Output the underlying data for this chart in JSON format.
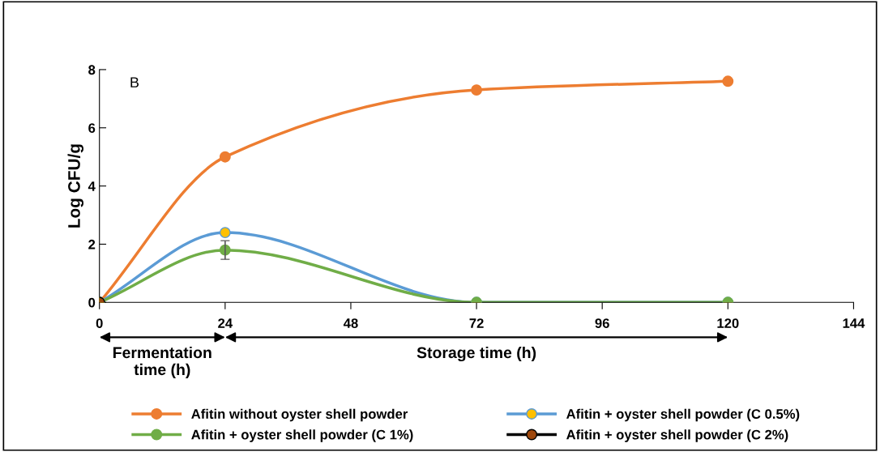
{
  "chart_data": {
    "type": "line",
    "ylabel": "Log CFU/g",
    "x": [
      0,
      24,
      72,
      120
    ],
    "xlim": [
      0,
      144
    ],
    "xticks": [
      0,
      24,
      48,
      72,
      96,
      120,
      144
    ],
    "ylim": [
      0,
      8
    ],
    "yticks": [
      0,
      2,
      4,
      6,
      8
    ],
    "series": [
      {
        "name": "Afitin without oyster shell powder",
        "color": "#ed7d31",
        "colors": [
          "#ed7d31",
          "#ed7d31",
          "#ed7d31",
          "#ed7d31"
        ],
        "values": [
          0,
          5.0,
          7.3,
          7.6
        ]
      },
      {
        "name": "Afitin + oyster shell powder (C 0.5%)",
        "color": "#5b9bd5",
        "colors": [
          "#ffc000",
          "#ffc000",
          "#ffc000",
          "#ffc000"
        ],
        "values": [
          0,
          2.4,
          0,
          0
        ]
      },
      {
        "name": "Afitin + oyster shell powder (C 1%)",
        "color": "#70ad47",
        "colors": [
          "#70ad47",
          "#70ad47",
          "#70ad47",
          "#70ad47"
        ],
        "values": [
          0,
          1.8,
          0,
          0
        ],
        "errors": [
          null,
          0.32,
          null,
          null
        ]
      },
      {
        "name": "Afitin + oyster shell powder (C 2%)",
        "color": "#000000",
        "colors": [
          "#9e480e",
          null,
          null,
          null
        ],
        "values": [
          0,
          null,
          null,
          null
        ]
      }
    ],
    "annotations": [
      "B",
      "Fermentation\ntime (h)",
      "Storage time (h)"
    ],
    "marker": "circle",
    "line_style": "solid",
    "grid": false,
    "legend": "bottom"
  }
}
